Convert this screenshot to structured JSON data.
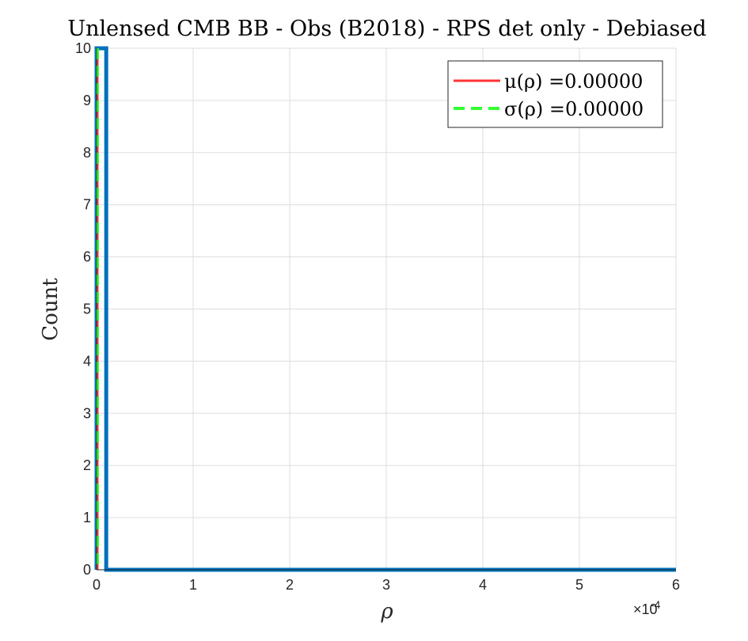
{
  "chart_data": {
    "type": "bar",
    "title": "Unlensed CMB BB - Obs (B2018) - RPS det only - Debiased",
    "xlabel": "ρ",
    "ylabel": "Count",
    "x_exponent_label": "×10",
    "x_exponent_power": "-4",
    "xlim": [
      0,
      0.0006
    ],
    "ylim": [
      0,
      10
    ],
    "x_ticks": [
      0,
      0.0001,
      0.0002,
      0.0003,
      0.0004,
      0.0005,
      0.0006
    ],
    "x_tick_labels": [
      "0",
      "1",
      "2",
      "3",
      "4",
      "5",
      "6"
    ],
    "y_ticks": [
      0,
      1,
      2,
      3,
      4,
      5,
      6,
      7,
      8,
      9,
      10
    ],
    "y_tick_labels": [
      "0",
      "1",
      "2",
      "3",
      "4",
      "5",
      "6",
      "7",
      "8",
      "9",
      "10"
    ],
    "grid": true,
    "histogram": {
      "color": "#0072bd",
      "bins": [
        {
          "x_start": 0,
          "x_end": 1e-05,
          "count": 10
        }
      ]
    },
    "reference_lines": [
      {
        "label": "μ(ρ) =0.00000",
        "value": 0.0,
        "color": "#ff3333",
        "style": "solid"
      },
      {
        "label": "σ(ρ) =0.00000",
        "value": 0.0,
        "color": "#33ff33",
        "style": "dashed"
      }
    ],
    "legend_position": "top-right"
  }
}
